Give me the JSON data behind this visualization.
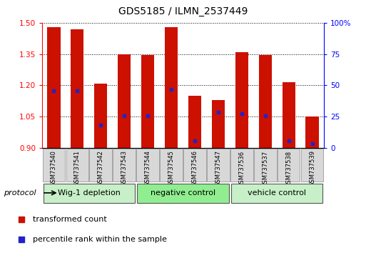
{
  "title": "GDS5185 / ILMN_2537449",
  "samples": [
    "GSM737540",
    "GSM737541",
    "GSM737542",
    "GSM737543",
    "GSM737544",
    "GSM737545",
    "GSM737546",
    "GSM737547",
    "GSM737536",
    "GSM737537",
    "GSM737538",
    "GSM737539"
  ],
  "bar_bottom": 0.9,
  "bar_tops": [
    1.48,
    1.47,
    1.21,
    1.35,
    1.345,
    1.48,
    1.15,
    1.13,
    1.36,
    1.345,
    1.215,
    1.05
  ],
  "blue_dot_y": [
    1.175,
    1.175,
    1.01,
    1.055,
    1.055,
    1.18,
    0.935,
    1.07,
    1.065,
    1.055,
    0.935,
    0.92
  ],
  "ylim_left": [
    0.9,
    1.5
  ],
  "ylim_right": [
    0,
    100
  ],
  "yticks_left": [
    0.9,
    1.05,
    1.2,
    1.35,
    1.5
  ],
  "yticks_right": [
    0,
    25,
    50,
    75,
    100
  ],
  "ytick_labels_right": [
    "0",
    "25",
    "50",
    "75",
    "100%"
  ],
  "bar_color": "#cc1100",
  "dot_color": "#2222cc",
  "groups": [
    {
      "label": "Wig-1 depletion",
      "start": 0,
      "end": 4,
      "color": "#c8f0c8"
    },
    {
      "label": "negative control",
      "start": 4,
      "end": 8,
      "color": "#90ee90"
    },
    {
      "label": "vehicle control",
      "start": 8,
      "end": 12,
      "color": "#c8f0c8"
    }
  ],
  "protocol_label": "protocol",
  "legend": [
    {
      "label": "transformed count",
      "color": "#cc1100"
    },
    {
      "label": "percentile rank within the sample",
      "color": "#2222cc"
    }
  ],
  "bar_width": 0.55,
  "title_fontsize": 10,
  "tick_fontsize": 7.5,
  "sample_fontsize": 6,
  "group_fontsize": 8,
  "legend_fontsize": 8
}
